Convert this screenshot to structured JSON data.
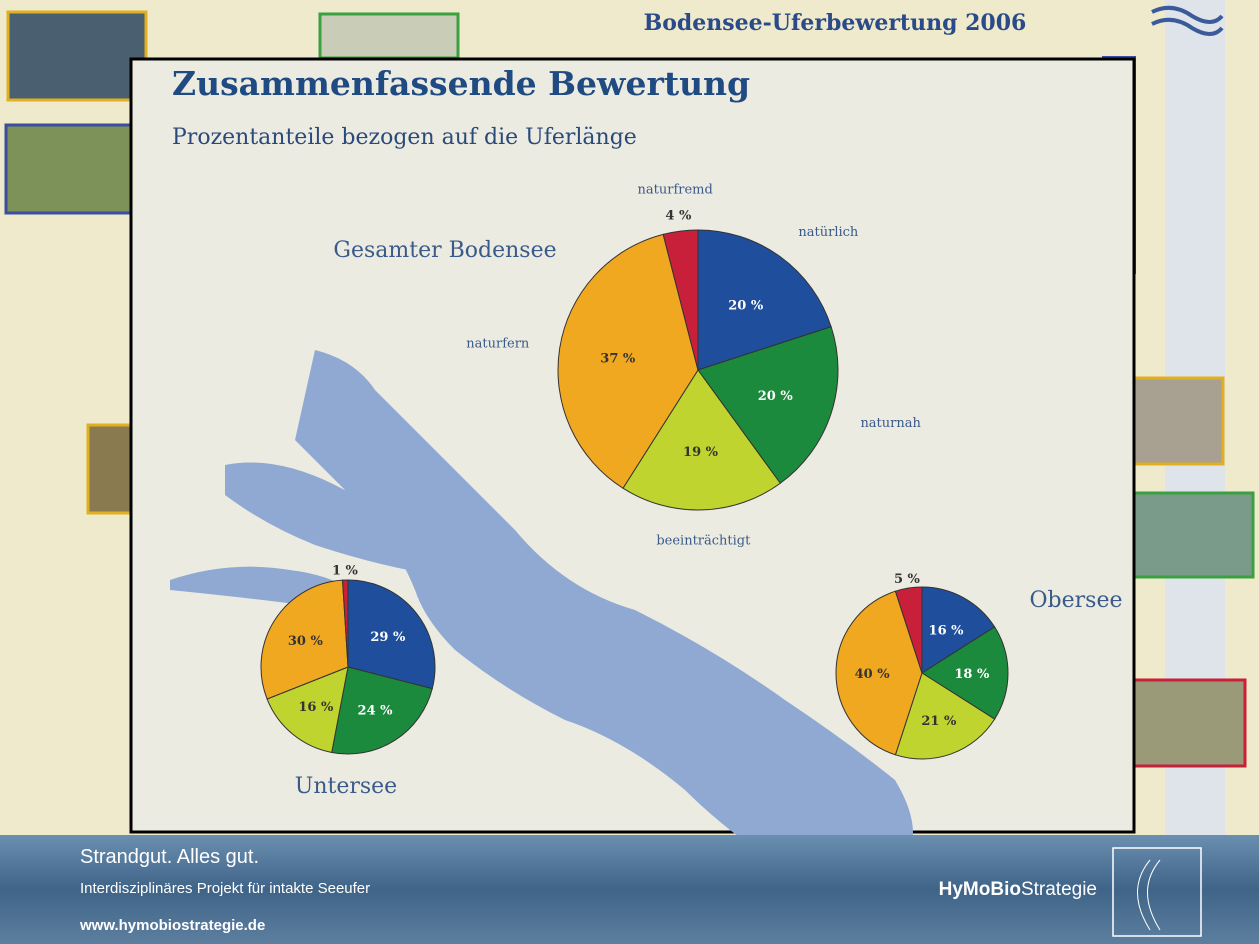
{
  "poster": {
    "title": "Bodensee-Uferbewertung 2006"
  },
  "slide": {
    "title": "Zusammenfassende Bewertung",
    "subtitle": "Prozentanteile bezogen auf die Uferlänge"
  },
  "footer": {
    "tagline": "Strandgut. Alles gut.",
    "project": "Interdisziplinäres Projekt für intakte Seeufer",
    "url": "www.hymobiostrategie.de",
    "brand_bold": "HyMoBio",
    "brand_rest": "Strategie"
  },
  "chart_data": [
    {
      "type": "pie",
      "title": "Gesamter Bodensee",
      "categories": [
        "natürlich",
        "naturnah",
        "beeinträchtigt",
        "naturfern",
        "naturfremd"
      ],
      "values": [
        20,
        20,
        19,
        37,
        4
      ],
      "value_labels": [
        "20 %",
        "20 %",
        "19 %",
        "37 %",
        "4 %"
      ],
      "colors": [
        "#1f4e9c",
        "#1c8a3c",
        "#bfd42e",
        "#f0a820",
        "#c8203a"
      ]
    },
    {
      "type": "pie",
      "title": "Untersee",
      "values": [
        29,
        24,
        16,
        30,
        1
      ],
      "value_labels": [
        "29 %",
        "24 %",
        "16 %",
        "30 %",
        "1 %"
      ],
      "colors": [
        "#1f4e9c",
        "#1c8a3c",
        "#bfd42e",
        "#f0a820",
        "#c8203a"
      ]
    },
    {
      "type": "pie",
      "title": "Obersee",
      "values": [
        16,
        18,
        21,
        40,
        5
      ],
      "value_labels": [
        "16 %",
        "18 %",
        "21 %",
        "40 %",
        "5 %"
      ],
      "colors": [
        "#1f4e9c",
        "#1c8a3c",
        "#bfd42e",
        "#f0a820",
        "#c8203a"
      ]
    }
  ]
}
